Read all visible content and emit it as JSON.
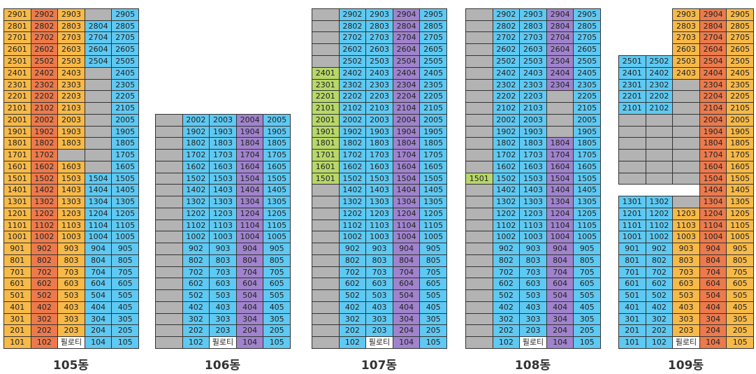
{
  "palette": {
    "O": "#f7b948",
    "R": "#ec7a4c",
    "B": "#5ec9f2",
    "P": "#a083cc",
    "G": "#b3b3b3",
    "L": "#b7d769",
    "W": "#ffffff"
  },
  "buildings": [
    {
      "name": "105동",
      "rows": [
        [
          "2901",
          "2902",
          "2903",
          null,
          "2905"
        ],
        [
          "2801",
          "2802",
          "2803",
          "2804",
          "2805"
        ],
        [
          "2701",
          "2702",
          "2703",
          "2704",
          "2705"
        ],
        [
          "2601",
          "2602",
          "2603",
          "2604",
          "2605"
        ],
        [
          "2501",
          "2502",
          "2503",
          "2504",
          "2505"
        ],
        [
          "2401",
          "2402",
          "2403",
          null,
          "2405"
        ],
        [
          "2301",
          "2302",
          "2303",
          null,
          "2305"
        ],
        [
          "2201",
          "2202",
          "2203",
          null,
          "2205"
        ],
        [
          "2101",
          "2102",
          "2103",
          null,
          "2105"
        ],
        [
          "2001",
          "2002",
          "2003",
          null,
          "2005"
        ],
        [
          "1901",
          "1902",
          "1903",
          null,
          "1905"
        ],
        [
          "1801",
          "1802",
          "1803",
          null,
          "1805"
        ],
        [
          "1701",
          "1702",
          null,
          null,
          "1705"
        ],
        [
          "1601",
          "1602",
          "1603",
          null,
          "1605"
        ],
        [
          "1501",
          "1502",
          "1503",
          "1504",
          "1505"
        ],
        [
          "1401",
          "1402",
          "1403",
          "1404",
          "1405"
        ],
        [
          "1301",
          "1302",
          "1303",
          "1304",
          "1305"
        ],
        [
          "1201",
          "1202",
          "1203",
          "1204",
          "1205"
        ],
        [
          "1101",
          "1102",
          "1103",
          "1104",
          "1105"
        ],
        [
          "1001",
          "1002",
          "1003",
          "1004",
          "1005"
        ],
        [
          "901",
          "902",
          "903",
          "904",
          "905"
        ],
        [
          "801",
          "802",
          "803",
          "804",
          "805"
        ],
        [
          "701",
          "702",
          "703",
          "704",
          "705"
        ],
        [
          "601",
          "602",
          "603",
          "604",
          "605"
        ],
        [
          "501",
          "502",
          "503",
          "504",
          "505"
        ],
        [
          "401",
          "402",
          "403",
          "404",
          "405"
        ],
        [
          "301",
          "302",
          "303",
          "304",
          "305"
        ],
        [
          "201",
          "202",
          "203",
          "204",
          "205"
        ],
        [
          "101",
          "102",
          "필로티",
          "104",
          "105"
        ]
      ],
      "colors": [
        "OROGB",
        "OROBB",
        "OROBB",
        "OROBB",
        "OROBB",
        "OROGB",
        "OROGB",
        "OROGB",
        "OROGB",
        "OROGB",
        "OROGB",
        "OROGB",
        "ORGGB",
        "OROGB",
        "OROBB",
        "OROBB",
        "OROBB",
        "OROBB",
        "OROBB",
        "OROBB",
        "OROBB",
        "OROBB",
        "OROBB",
        "OROBB",
        "OROBB",
        "OROBB",
        "OROBB",
        "OROBB",
        "ORWBB"
      ]
    },
    {
      "name": "106동",
      "rows": [
        [
          null,
          "2002",
          "2003",
          "2004",
          "2005"
        ],
        [
          null,
          "1902",
          "1903",
          "1904",
          "1905"
        ],
        [
          null,
          "1802",
          "1803",
          "1804",
          "1805"
        ],
        [
          null,
          "1702",
          "1703",
          "1704",
          "1705"
        ],
        [
          null,
          "1602",
          "1603",
          "1604",
          "1605"
        ],
        [
          null,
          "1502",
          "1503",
          "1504",
          "1505"
        ],
        [
          null,
          "1402",
          "1403",
          "1404",
          "1405"
        ],
        [
          null,
          "1302",
          "1303",
          "1304",
          "1305"
        ],
        [
          null,
          "1202",
          "1203",
          "1204",
          "1205"
        ],
        [
          null,
          "1102",
          "1103",
          "1104",
          "1105"
        ],
        [
          null,
          "1002",
          "1003",
          "1004",
          "1005"
        ],
        [
          null,
          "902",
          "903",
          "904",
          "905"
        ],
        [
          null,
          "802",
          "803",
          "804",
          "805"
        ],
        [
          null,
          "702",
          "703",
          "704",
          "705"
        ],
        [
          null,
          "602",
          "603",
          "604",
          "605"
        ],
        [
          null,
          "502",
          "503",
          "504",
          "505"
        ],
        [
          null,
          "402",
          "403",
          "404",
          "405"
        ],
        [
          null,
          "302",
          "303",
          "304",
          "305"
        ],
        [
          null,
          "202",
          "203",
          "204",
          "205"
        ],
        [
          null,
          "102",
          "필로티",
          "104",
          "105"
        ]
      ],
      "colors": [
        "GBBPB",
        "GBBPB",
        "GBBPB",
        "GBBPB",
        "GBBPB",
        "GBBPB",
        "GBBPB",
        "GBBPB",
        "GBBPB",
        "GBBPB",
        "GBBPB",
        "GBBPB",
        "GBBPB",
        "GBBPB",
        "GBBPB",
        "GBBPB",
        "GBBPB",
        "GBBPB",
        "GBBPB",
        "GBWPB"
      ]
    },
    {
      "name": "107동",
      "rows": [
        [
          null,
          "2902",
          "2903",
          "2904",
          "2905"
        ],
        [
          null,
          "2802",
          "2803",
          "2804",
          "2805"
        ],
        [
          null,
          "2702",
          "2703",
          "2704",
          "2705"
        ],
        [
          null,
          "2602",
          "2603",
          "2604",
          "2605"
        ],
        [
          null,
          "2502",
          "2503",
          "2504",
          "2505"
        ],
        [
          "2401",
          "2402",
          "2403",
          "2404",
          "2405"
        ],
        [
          "2301",
          "2302",
          "2303",
          "2304",
          "2305"
        ],
        [
          "2201",
          "2202",
          "2203",
          "2204",
          "2205"
        ],
        [
          "2101",
          "2102",
          "2103",
          "2104",
          "2105"
        ],
        [
          "2001",
          "2002",
          "2003",
          "2004",
          "2005"
        ],
        [
          "1901",
          "1902",
          "1903",
          "1904",
          "1905"
        ],
        [
          "1801",
          "1802",
          "1803",
          "1804",
          "1805"
        ],
        [
          "1701",
          "1702",
          "1703",
          "1704",
          "1705"
        ],
        [
          "1601",
          "1602",
          "1603",
          "1604",
          "1605"
        ],
        [
          "1501",
          "1502",
          "1503",
          "1504",
          "1505"
        ],
        [
          null,
          "1402",
          "1403",
          "1404",
          "1405"
        ],
        [
          null,
          "1302",
          "1303",
          "1304",
          "1305"
        ],
        [
          null,
          "1202",
          "1203",
          "1204",
          "1205"
        ],
        [
          null,
          "1102",
          "1103",
          "1104",
          "1105"
        ],
        [
          null,
          "1002",
          "1003",
          "1004",
          "1005"
        ],
        [
          null,
          "902",
          "903",
          "904",
          "905"
        ],
        [
          null,
          "802",
          "803",
          "804",
          "805"
        ],
        [
          null,
          "702",
          "703",
          "704",
          "705"
        ],
        [
          null,
          "602",
          "603",
          "604",
          "605"
        ],
        [
          null,
          "502",
          "503",
          "504",
          "505"
        ],
        [
          null,
          "402",
          "403",
          "404",
          "405"
        ],
        [
          null,
          "302",
          "303",
          "304",
          "305"
        ],
        [
          null,
          "202",
          "203",
          "204",
          "205"
        ],
        [
          null,
          "102",
          "필로티",
          "104",
          "105"
        ]
      ],
      "colors": [
        "GBBPB",
        "GBBPB",
        "GBBPB",
        "GBBPB",
        "GBBPB",
        "LBBPB",
        "LBBPB",
        "LBBPB",
        "LBBPB",
        "LBBPB",
        "LBBPB",
        "LBBPB",
        "LBBPB",
        "LBBPB",
        "LBBPB",
        "GBBPB",
        "GBBPB",
        "GBBPB",
        "GBBPB",
        "GBBPB",
        "GBBPB",
        "GBBPB",
        "GBBPB",
        "GBBPB",
        "GBBPB",
        "GBBPB",
        "GBBPB",
        "GBBPB",
        "GBWPB"
      ]
    },
    {
      "name": "108동",
      "rows": [
        [
          null,
          "2902",
          "2903",
          "2904",
          "2905"
        ],
        [
          null,
          "2802",
          "2803",
          "2804",
          "2805"
        ],
        [
          null,
          "2702",
          "2703",
          "2704",
          "2705"
        ],
        [
          null,
          "2602",
          "2603",
          "2604",
          "2605"
        ],
        [
          null,
          "2502",
          "2503",
          "2504",
          "2505"
        ],
        [
          null,
          "2402",
          "2403",
          "2404",
          "2405"
        ],
        [
          null,
          "2302",
          "2303",
          "2304",
          "2305"
        ],
        [
          null,
          "2202",
          "2203",
          null,
          "2205"
        ],
        [
          null,
          "2102",
          "2103",
          null,
          "2105"
        ],
        [
          null,
          "2002",
          "2003",
          null,
          "2005"
        ],
        [
          null,
          "1902",
          "1903",
          null,
          "1905"
        ],
        [
          null,
          "1802",
          "1803",
          "1804",
          "1805"
        ],
        [
          null,
          "1702",
          "1703",
          "1704",
          "1705"
        ],
        [
          null,
          "1602",
          "1603",
          "1604",
          "1605"
        ],
        [
          "1501",
          "1502",
          "1503",
          "1504",
          "1505"
        ],
        [
          null,
          "1402",
          "1403",
          "1404",
          "1405"
        ],
        [
          null,
          "1302",
          "1303",
          "1304",
          "1305"
        ],
        [
          null,
          "1202",
          "1203",
          "1204",
          "1205"
        ],
        [
          null,
          "1102",
          "1103",
          "1104",
          "1105"
        ],
        [
          null,
          "1002",
          "1003",
          "1004",
          "1005"
        ],
        [
          null,
          "902",
          "903",
          "904",
          "905"
        ],
        [
          null,
          "802",
          "803",
          "804",
          "805"
        ],
        [
          null,
          "702",
          "703",
          "704",
          "705"
        ],
        [
          null,
          "602",
          "603",
          "604",
          "605"
        ],
        [
          null,
          "502",
          "503",
          "504",
          "505"
        ],
        [
          null,
          "402",
          "403",
          "404",
          "405"
        ],
        [
          null,
          "302",
          "303",
          "304",
          "305"
        ],
        [
          null,
          "202",
          "203",
          "204",
          "205"
        ],
        [
          null,
          "102",
          "필로티",
          "104",
          "105"
        ]
      ],
      "colors": [
        "GBBPB",
        "GBBPB",
        "GBBPB",
        "GBBPB",
        "GBBPB",
        "GBBPB",
        "GBBPB",
        "GBBGB",
        "GBBGB",
        "GBBGB",
        "GBBGB",
        "GBBPB",
        "GBBPB",
        "GBBPB",
        "LBBPB",
        "GBBPB",
        "GBBPB",
        "GBBPB",
        "GBBPB",
        "GBBPB",
        "GBBPB",
        "GBBPB",
        "GBBPB",
        "GBBPB",
        "GBBPB",
        "GBBPB",
        "GBBPB",
        "GBBPB",
        "GBWPB"
      ]
    },
    {
      "name": "109동",
      "rows": [
        [
          null,
          null,
          "2903",
          "2904",
          "2905"
        ],
        [
          null,
          null,
          "2803",
          "2804",
          "2805"
        ],
        [
          null,
          null,
          "2703",
          "2704",
          "2705"
        ],
        [
          null,
          null,
          "2603",
          "2604",
          "2605"
        ],
        [
          "2501",
          "2502",
          "2503",
          "2504",
          "2505"
        ],
        [
          "2401",
          "2402",
          "2403",
          "2404",
          "2405"
        ],
        [
          "2301",
          "2302",
          null,
          "2304",
          "2305"
        ],
        [
          "2201",
          "2202",
          null,
          "2204",
          "2205"
        ],
        [
          "2101",
          "2102",
          null,
          "2104",
          "2105"
        ],
        [
          null,
          null,
          null,
          "2004",
          "2005"
        ],
        [
          null,
          null,
          null,
          "1904",
          "1905"
        ],
        [
          null,
          null,
          null,
          "1804",
          "1805"
        ],
        [
          null,
          null,
          null,
          "1704",
          "1705"
        ],
        [
          null,
          null,
          null,
          "1604",
          "1605"
        ],
        [
          null,
          null,
          null,
          "1504",
          "1505"
        ],
        [
          null,
          null,
          null,
          "1404",
          "1405"
        ],
        [
          "1301",
          "1302",
          null,
          "1304",
          "1305"
        ],
        [
          "1201",
          "1202",
          "1203",
          "1204",
          "1205"
        ],
        [
          "1101",
          "1102",
          "1103",
          "1104",
          "1105"
        ],
        [
          "1001",
          "1002",
          "1003",
          "1004",
          "1005"
        ],
        [
          "901",
          "902",
          "903",
          "904",
          "905"
        ],
        [
          "801",
          "802",
          "803",
          "804",
          "805"
        ],
        [
          "701",
          "702",
          "703",
          "704",
          "705"
        ],
        [
          "601",
          "602",
          "603",
          "604",
          "605"
        ],
        [
          "501",
          "502",
          "503",
          "504",
          "505"
        ],
        [
          "401",
          "402",
          "403",
          "404",
          "405"
        ],
        [
          "301",
          "302",
          "303",
          "304",
          "305"
        ],
        [
          "201",
          "202",
          "203",
          "204",
          "205"
        ],
        [
          "101",
          "102",
          "필로티",
          "104",
          "105"
        ]
      ],
      "colors": [
        "__ORO",
        "__ORO",
        "__ORO",
        "__ORO",
        "BBORO",
        "BBORO",
        "BBGRO",
        "BBGRO",
        "BBGRO",
        "GGGRO",
        "GGGRO",
        "GGGRO",
        "GGGRO",
        "GGGRO",
        "GGGRO",
        "___RO",
        "BBGRO",
        "BBORO",
        "BBORO",
        "BBORO",
        "BBORO",
        "BBORO",
        "BBORO",
        "BBORO",
        "BBORO",
        "BBORO",
        "BBORO",
        "BBORO",
        "BBWRO"
      ]
    }
  ]
}
